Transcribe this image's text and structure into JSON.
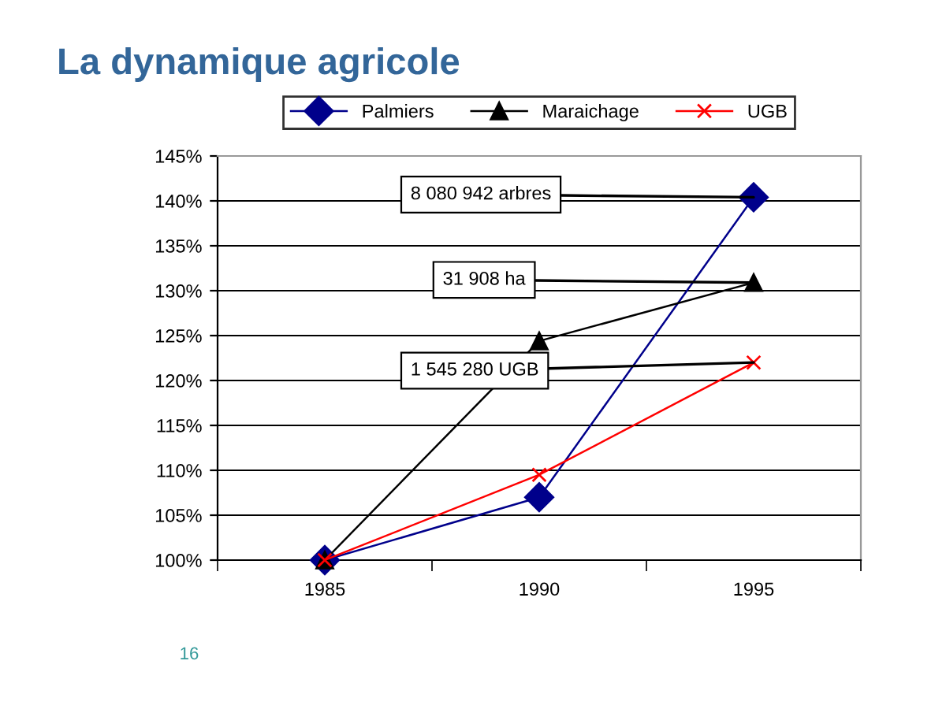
{
  "chart_data": {
    "type": "line",
    "title": "La dynamique agricole",
    "categories": [
      "1985",
      "1990",
      "1995"
    ],
    "series": [
      {
        "name": "Palmiers",
        "color": "#00008b",
        "marker": "diamond",
        "values": [
          100,
          107,
          140.4
        ]
      },
      {
        "name": "Maraichage",
        "color": "#000000",
        "marker": "triangle",
        "values": [
          100,
          124.4,
          130.9
        ]
      },
      {
        "name": "UGB",
        "color": "#ff0000",
        "marker": "cross",
        "values": [
          100,
          109.5,
          122
        ]
      }
    ],
    "ylim": [
      100,
      145
    ],
    "yticks": [
      {
        "value": 100,
        "label": "100%"
      },
      {
        "value": 105,
        "label": "105%"
      },
      {
        "value": 110,
        "label": "110%"
      },
      {
        "value": 115,
        "label": "115%"
      },
      {
        "value": 120,
        "label": "120%"
      },
      {
        "value": 125,
        "label": "125%"
      },
      {
        "value": 130,
        "label": "130%"
      },
      {
        "value": 135,
        "label": "135%"
      },
      {
        "value": 140,
        "label": "140%"
      },
      {
        "value": 145,
        "label": "145%"
      }
    ],
    "grid": "y",
    "legend": "top",
    "annotations": [
      {
        "text": "8 080 942 arbres",
        "x": "1995",
        "y": 140.4
      },
      {
        "text": "31 908 ha",
        "x": "1995",
        "y": 130.9
      },
      {
        "text": "1 545 280 UGB",
        "x": "1995",
        "y": 122
      },
      "16"
    ]
  }
}
